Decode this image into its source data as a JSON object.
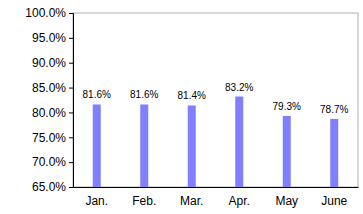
{
  "chart_data": {
    "type": "bar",
    "categories": [
      "Jan.",
      "Feb.",
      "Mar.",
      "Apr.",
      "May",
      "June"
    ],
    "values": [
      81.6,
      81.6,
      81.4,
      83.2,
      79.3,
      78.7
    ],
    "value_labels": [
      "81.6%",
      "81.6%",
      "81.4%",
      "83.2%",
      "79.3%",
      "78.7%"
    ],
    "data_labels": true,
    "color": "#8080ff",
    "ylim": [
      65,
      100
    ],
    "yticks": [
      {
        "value": 65,
        "label": "65.0%"
      },
      {
        "value": 70,
        "label": "70.0%"
      },
      {
        "value": 75,
        "label": "75.0%"
      },
      {
        "value": 80,
        "label": "80.0%"
      },
      {
        "value": 85,
        "label": "85.0%"
      },
      {
        "value": 90,
        "label": "90.0%"
      },
      {
        "value": 95,
        "label": "95.0%"
      },
      {
        "value": 100,
        "label": "100.0%"
      }
    ],
    "grid": false
  }
}
